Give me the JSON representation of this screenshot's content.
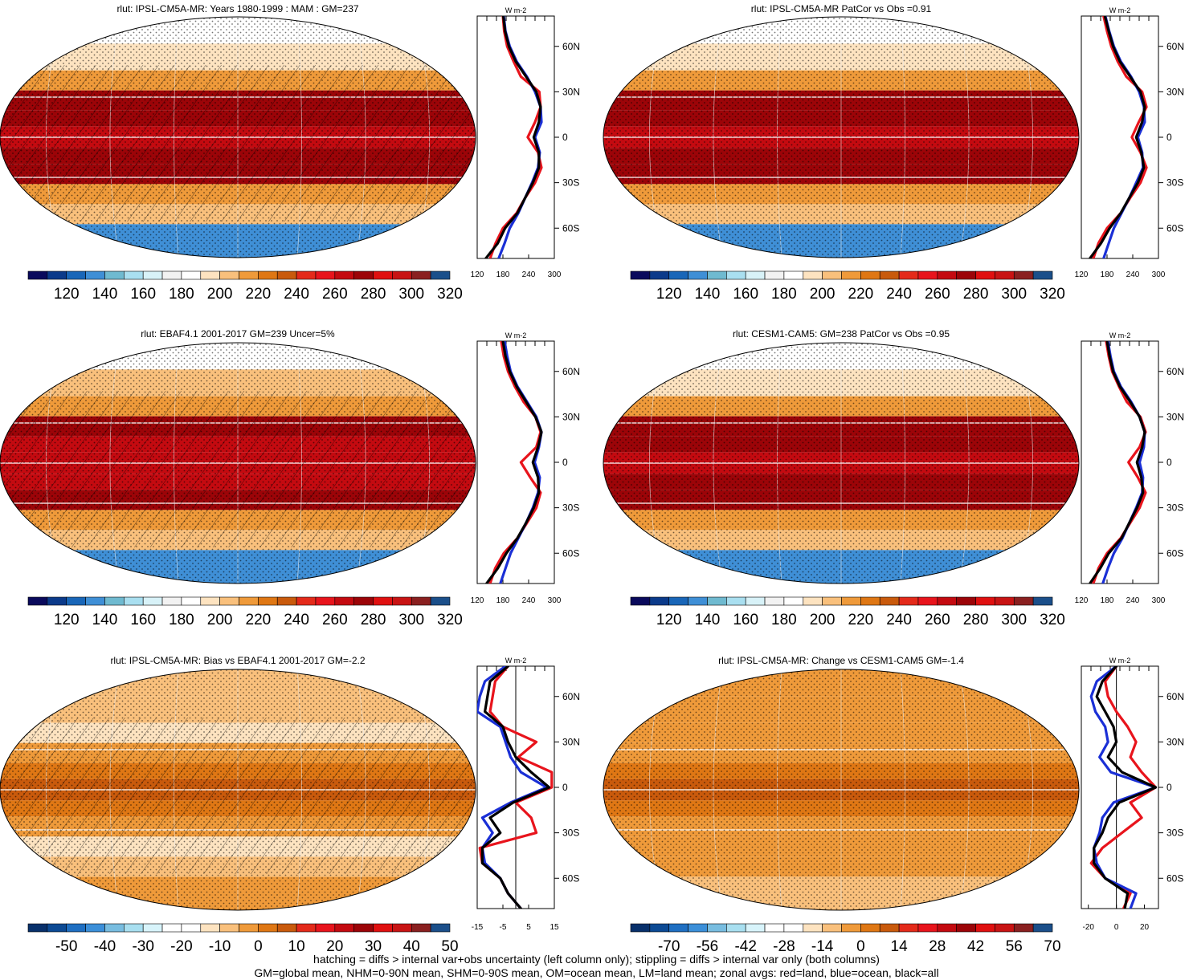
{
  "figure": {
    "footnotes": [
      "hatching = diffs > internal var+obs uncertainty (left column only); stippling = diffs > internal var only (both columns)",
      "GM=global mean, NHM=0-90N mean, SHM=0-90S mean, OM=ocean mean, LM=land mean; zonal avgs: red=land, blue=ocean, black=all"
    ],
    "line_colors": {
      "land": "#e8141c",
      "ocean": "#1a2fd6",
      "all": "#000000"
    }
  },
  "palettes": {
    "absolute": [
      "#0a0a5c",
      "#0b3a8a",
      "#1966b8",
      "#3f8fd6",
      "#6fbad0",
      "#a9dff0",
      "#d8f2f8",
      "#f2f2f2",
      "#ffffff",
      "#fde3c0",
      "#f9c07c",
      "#ef9a3a",
      "#df7714",
      "#c95a0c",
      "#e42a1a",
      "#e8141c",
      "#c40a10",
      "#9c0408",
      "#e01010",
      "#c81414",
      "#8a2020",
      "#1b4f8a"
    ],
    "difference": [
      "#08306b",
      "#0c4a94",
      "#1f6fc2",
      "#3b8fd9",
      "#78bde0",
      "#a8dff0",
      "#d8f4fb",
      "#ffffff",
      "#ffffff",
      "#fde3c0",
      "#f9c07c",
      "#ef9a3a",
      "#df7714",
      "#c95a0c",
      "#e42a1a",
      "#e8141c",
      "#c40a10",
      "#9c0408",
      "#e01010",
      "#c81414",
      "#8a2020",
      "#1b4f8a"
    ]
  },
  "chart_data": [
    {
      "type": "heatmap",
      "panel": "top-left",
      "title": "rlut: IPSL-CM5A-MR: Years 1980-1999 : MAM : GM=237",
      "colorbar": {
        "palette": "absolute",
        "labels": [
          "120",
          "140",
          "160",
          "180",
          "200",
          "220",
          "240",
          "260",
          "280",
          "300",
          "320"
        ]
      },
      "field": {
        "equator": 275,
        "subtropics": 285,
        "midlat": 225,
        "polar_north": 190,
        "antarctica": 140
      },
      "hatching": true,
      "stippling": true,
      "zonal_profile": {
        "xlim": [
          120,
          300
        ],
        "xticks": [
          120,
          180,
          240,
          300
        ],
        "xtick_labels": [
          "120",
          "180",
          "240",
          "300"
        ],
        "yticks": [
          60,
          30,
          0,
          -30,
          -60
        ],
        "ytick_labels": [
          "60N",
          "30N",
          "0",
          "30S",
          "60S"
        ],
        "ylim": [
          -80,
          80
        ],
        "unit": "W m-2",
        "lat": [
          80,
          70,
          60,
          50,
          40,
          30,
          20,
          10,
          0,
          -10,
          -20,
          -30,
          -40,
          -50,
          -60,
          -70,
          -80
        ],
        "land": [
          180,
          183,
          190,
          205,
          222,
          265,
          268,
          255,
          238,
          262,
          270,
          255,
          232,
          212,
          180,
          163,
          150
        ],
        "ocean": [
          182,
          186,
          196,
          212,
          236,
          255,
          268,
          270,
          255,
          266,
          262,
          248,
          232,
          216,
          196,
          184,
          170
        ],
        "all": [
          181,
          185,
          194,
          210,
          234,
          258,
          268,
          264,
          252,
          264,
          264,
          250,
          232,
          214,
          185,
          168,
          140
        ]
      }
    },
    {
      "type": "heatmap",
      "panel": "top-right",
      "title": "rlut: IPSL-CM5A-MR PatCor vs Obs =0.91",
      "colorbar": {
        "palette": "absolute",
        "labels": [
          "120",
          "140",
          "160",
          "180",
          "200",
          "220",
          "240",
          "260",
          "280",
          "300",
          "320"
        ]
      },
      "field": {
        "equator": 275,
        "subtropics": 285,
        "midlat": 225,
        "polar_north": 190,
        "antarctica": 140
      },
      "hatching": false,
      "stippling": true,
      "zonal_profile": {
        "xlim": [
          120,
          300
        ],
        "xticks": [
          120,
          180,
          240,
          300
        ],
        "xtick_labels": [
          "120",
          "180",
          "240",
          "300"
        ],
        "yticks": [
          60,
          30,
          0,
          -30,
          -60
        ],
        "ytick_labels": [
          "60N",
          "30N",
          "0",
          "30S",
          "60S"
        ],
        "ylim": [
          -80,
          80
        ],
        "unit": "W m-2",
        "lat": [
          80,
          70,
          60,
          50,
          40,
          30,
          20,
          10,
          0,
          -10,
          -20,
          -30,
          -40,
          -50,
          -60,
          -70,
          -80
        ],
        "land": [
          172,
          180,
          190,
          205,
          225,
          262,
          272,
          254,
          238,
          258,
          272,
          258,
          234,
          212,
          180,
          160,
          148
        ],
        "ocean": [
          176,
          185,
          196,
          212,
          236,
          255,
          266,
          268,
          252,
          262,
          264,
          248,
          232,
          214,
          196,
          184,
          172
        ],
        "all": [
          175,
          184,
          194,
          210,
          234,
          258,
          268,
          262,
          248,
          260,
          266,
          252,
          232,
          212,
          186,
          166,
          140
        ]
      }
    },
    {
      "type": "heatmap",
      "panel": "middle-left",
      "title": "rlut: EBAF4.1 2001-2017 GM=239 Uncer=5%",
      "colorbar": {
        "palette": "absolute",
        "labels": [
          "120",
          "140",
          "160",
          "180",
          "200",
          "220",
          "240",
          "260",
          "280",
          "300",
          "320"
        ]
      },
      "field": {
        "equator": 270,
        "subtropics": 285,
        "midlat": 228,
        "polar_north": 192,
        "antarctica": 145
      },
      "hatching": true,
      "stippling": true,
      "zonal_profile": {
        "xlim": [
          120,
          300
        ],
        "xticks": [
          120,
          180,
          240,
          300
        ],
        "xtick_labels": [
          "120",
          "180",
          "240",
          "300"
        ],
        "yticks": [
          60,
          30,
          0,
          -30,
          -60
        ],
        "ytick_labels": [
          "60N",
          "30N",
          "0",
          "30S",
          "60S"
        ],
        "ylim": [
          -80,
          80
        ],
        "unit": "W m-2",
        "lat": [
          80,
          70,
          60,
          50,
          40,
          30,
          20,
          10,
          0,
          -10,
          -20,
          -30,
          -40,
          -50,
          -60,
          -70,
          -80
        ],
        "land": [
          176,
          182,
          192,
          208,
          228,
          256,
          268,
          258,
          222,
          244,
          268,
          258,
          236,
          214,
          182,
          162,
          150
        ],
        "ocean": [
          184,
          190,
          198,
          214,
          236,
          258,
          270,
          264,
          254,
          266,
          262,
          250,
          234,
          216,
          198,
          186,
          174
        ],
        "all": [
          180,
          186,
          196,
          212,
          234,
          256,
          270,
          262,
          250,
          262,
          264,
          252,
          234,
          214,
          188,
          168,
          142
        ]
      }
    },
    {
      "type": "heatmap",
      "panel": "middle-right",
      "title": "rlut: CESM1-CAM5: GM=238 PatCor vs Obs =0.95",
      "colorbar": {
        "palette": "absolute",
        "labels": [
          "120",
          "140",
          "160",
          "180",
          "200",
          "220",
          "240",
          "260",
          "280",
          "300",
          "320"
        ]
      },
      "field": {
        "equator": 275,
        "subtropics": 285,
        "midlat": 226,
        "polar_north": 192,
        "antarctica": 140
      },
      "hatching": false,
      "stippling": true,
      "zonal_profile": {
        "xlim": [
          120,
          300
        ],
        "xticks": [
          120,
          180,
          240,
          300
        ],
        "xtick_labels": [
          "120",
          "180",
          "240",
          "300"
        ],
        "yticks": [
          60,
          30,
          0,
          -30,
          -60
        ],
        "ytick_labels": [
          "60N",
          "30N",
          "0",
          "30S",
          "60S"
        ],
        "ylim": [
          -80,
          80
        ],
        "unit": "W m-2",
        "lat": [
          80,
          70,
          60,
          50,
          40,
          30,
          20,
          10,
          0,
          -10,
          -20,
          -30,
          -40,
          -50,
          -60,
          -70,
          -80
        ],
        "land": [
          178,
          184,
          192,
          208,
          226,
          258,
          270,
          256,
          230,
          252,
          270,
          256,
          234,
          212,
          180,
          160,
          148
        ],
        "ocean": [
          182,
          188,
          196,
          212,
          236,
          256,
          268,
          266,
          256,
          264,
          262,
          248,
          232,
          216,
          196,
          182,
          170
        ],
        "all": [
          180,
          186,
          194,
          210,
          234,
          256,
          268,
          262,
          250,
          260,
          264,
          250,
          232,
          214,
          184,
          164,
          140
        ]
      }
    },
    {
      "type": "heatmap",
      "panel": "bottom-left",
      "title": "rlut: IPSL-CM5A-MR: Bias vs EBAF4.1 2001-2017 GM=-2.2",
      "colorbar": {
        "palette": "difference",
        "labels": [
          "-50",
          "-40",
          "-30",
          "-20",
          "-10",
          "0",
          "10",
          "20",
          "30",
          "40",
          "50"
        ]
      },
      "field": {
        "equator": 10,
        "subtropics": 4,
        "midlat": -6,
        "polar_north": -4,
        "antarctica": 3
      },
      "hatching": true,
      "stippling": true,
      "zonal_profile": {
        "xlim": [
          -15,
          15
        ],
        "xticks": [
          -15,
          -5,
          5,
          15
        ],
        "xtick_labels": [
          "-15",
          "-5",
          "5",
          "15"
        ],
        "yticks": [
          60,
          30,
          0,
          -30,
          -60
        ],
        "ytick_labels": [
          "60N",
          "30N",
          "0",
          "30S",
          "60S"
        ],
        "ylim": [
          -80,
          80
        ],
        "unit": "W m-2",
        "zero_line": true,
        "lat": [
          80,
          70,
          60,
          50,
          40,
          30,
          20,
          10,
          0,
          -10,
          -20,
          -30,
          -40,
          -50,
          -60,
          -70,
          -80
        ],
        "land": [
          -3,
          -8,
          -9,
          -10,
          -5,
          8,
          1,
          14,
          14,
          0,
          6,
          8,
          -14,
          -13,
          -6,
          -3,
          2
        ],
        "ocean": [
          -4,
          -12,
          -14,
          -15,
          -6,
          -4,
          -2,
          2,
          12,
          -2,
          -13,
          -9,
          -13,
          -12,
          -6,
          -3,
          2
        ],
        "all": [
          -3,
          -10,
          -11,
          -12,
          -5,
          -3,
          0,
          6,
          13,
          -1,
          -10,
          -6,
          -13,
          -13,
          -6,
          -3,
          2
        ]
      }
    },
    {
      "type": "heatmap",
      "panel": "bottom-right",
      "title": "rlut: IPSL-CM5A-MR: Change vs CESM1-CAM5 GM=-1.4",
      "colorbar": {
        "palette": "difference",
        "labels": [
          "-70",
          "-56",
          "-42",
          "-28",
          "-14",
          "0",
          "14",
          "28",
          "42",
          "56",
          "70"
        ]
      },
      "field": {
        "equator": 18,
        "subtropics": 4,
        "midlat": 6,
        "polar_north": 3,
        "antarctica": -2
      },
      "hatching": false,
      "stippling": true,
      "zonal_profile": {
        "xlim": [
          -25,
          30
        ],
        "xticks": [
          -20,
          0,
          20
        ],
        "xtick_labels": [
          "-20",
          "0",
          "20"
        ],
        "yticks": [
          60,
          30,
          0,
          -30,
          -60
        ],
        "ytick_labels": [
          "60N",
          "30N",
          "0",
          "30S",
          "60S"
        ],
        "ylim": [
          -80,
          80
        ],
        "unit": "W m-2",
        "zero_line": true,
        "lat": [
          80,
          70,
          60,
          50,
          40,
          30,
          20,
          10,
          0,
          -10,
          -20,
          -30,
          -40,
          -50,
          -60,
          -70,
          -80
        ],
        "land": [
          0,
          -8,
          -6,
          0,
          8,
          14,
          10,
          18,
          28,
          10,
          18,
          4,
          -10,
          -18,
          -8,
          10,
          5
        ],
        "ocean": [
          0,
          -14,
          -18,
          -15,
          -8,
          -6,
          -12,
          -4,
          28,
          -2,
          -10,
          -12,
          -16,
          -14,
          -8,
          14,
          10
        ],
        "all": [
          0,
          -10,
          -14,
          -8,
          -2,
          0,
          -6,
          4,
          28,
          2,
          -6,
          -10,
          -16,
          -16,
          -8,
          8,
          6
        ]
      }
    }
  ]
}
